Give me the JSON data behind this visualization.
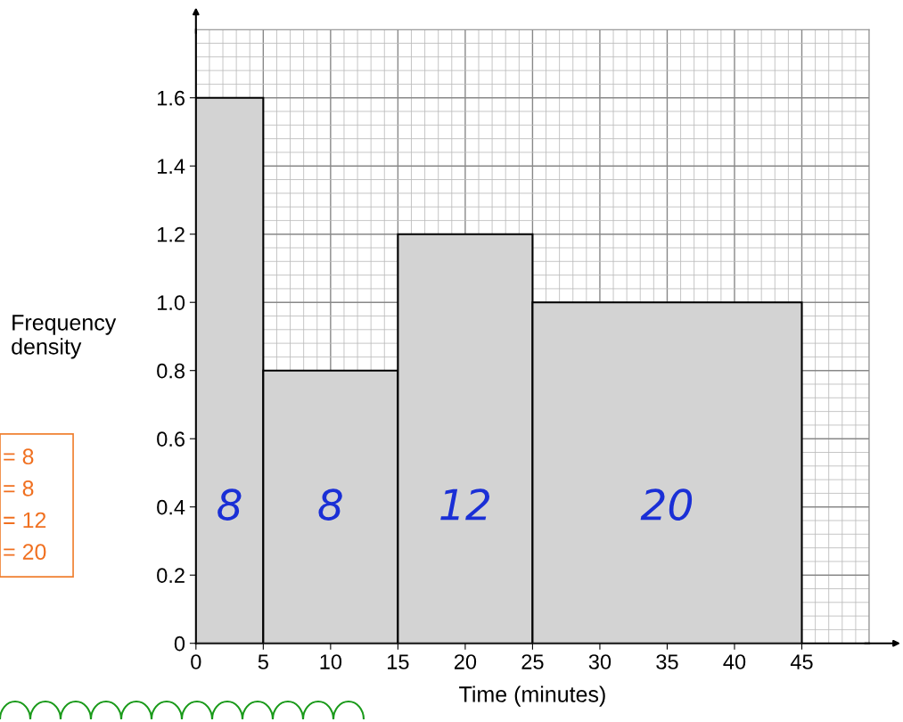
{
  "chart_data": {
    "type": "histogram",
    "xlabel": "Time (minutes)",
    "ylabel": "Frequency density",
    "bins": [
      0,
      5,
      15,
      25,
      45
    ],
    "values": [
      1.6,
      0.8,
      1.2,
      1.0
    ],
    "color": "#d3d3d3",
    "xlim": [
      0,
      50
    ],
    "ylim": [
      0,
      1.8
    ],
    "xticks": [
      0,
      5,
      10,
      15,
      20,
      25,
      30,
      35,
      40,
      45
    ],
    "yticks": [
      0,
      0.2,
      0.4,
      0.6,
      0.8,
      {
        "value": 1,
        "label": "1.0"
      },
      1.2,
      1.4,
      1.6
    ],
    "grid": true,
    "annotations": [
      "8",
      "8",
      "12",
      "20",
      "= 8",
      "= 8",
      "= 12",
      "= 20"
    ]
  }
}
